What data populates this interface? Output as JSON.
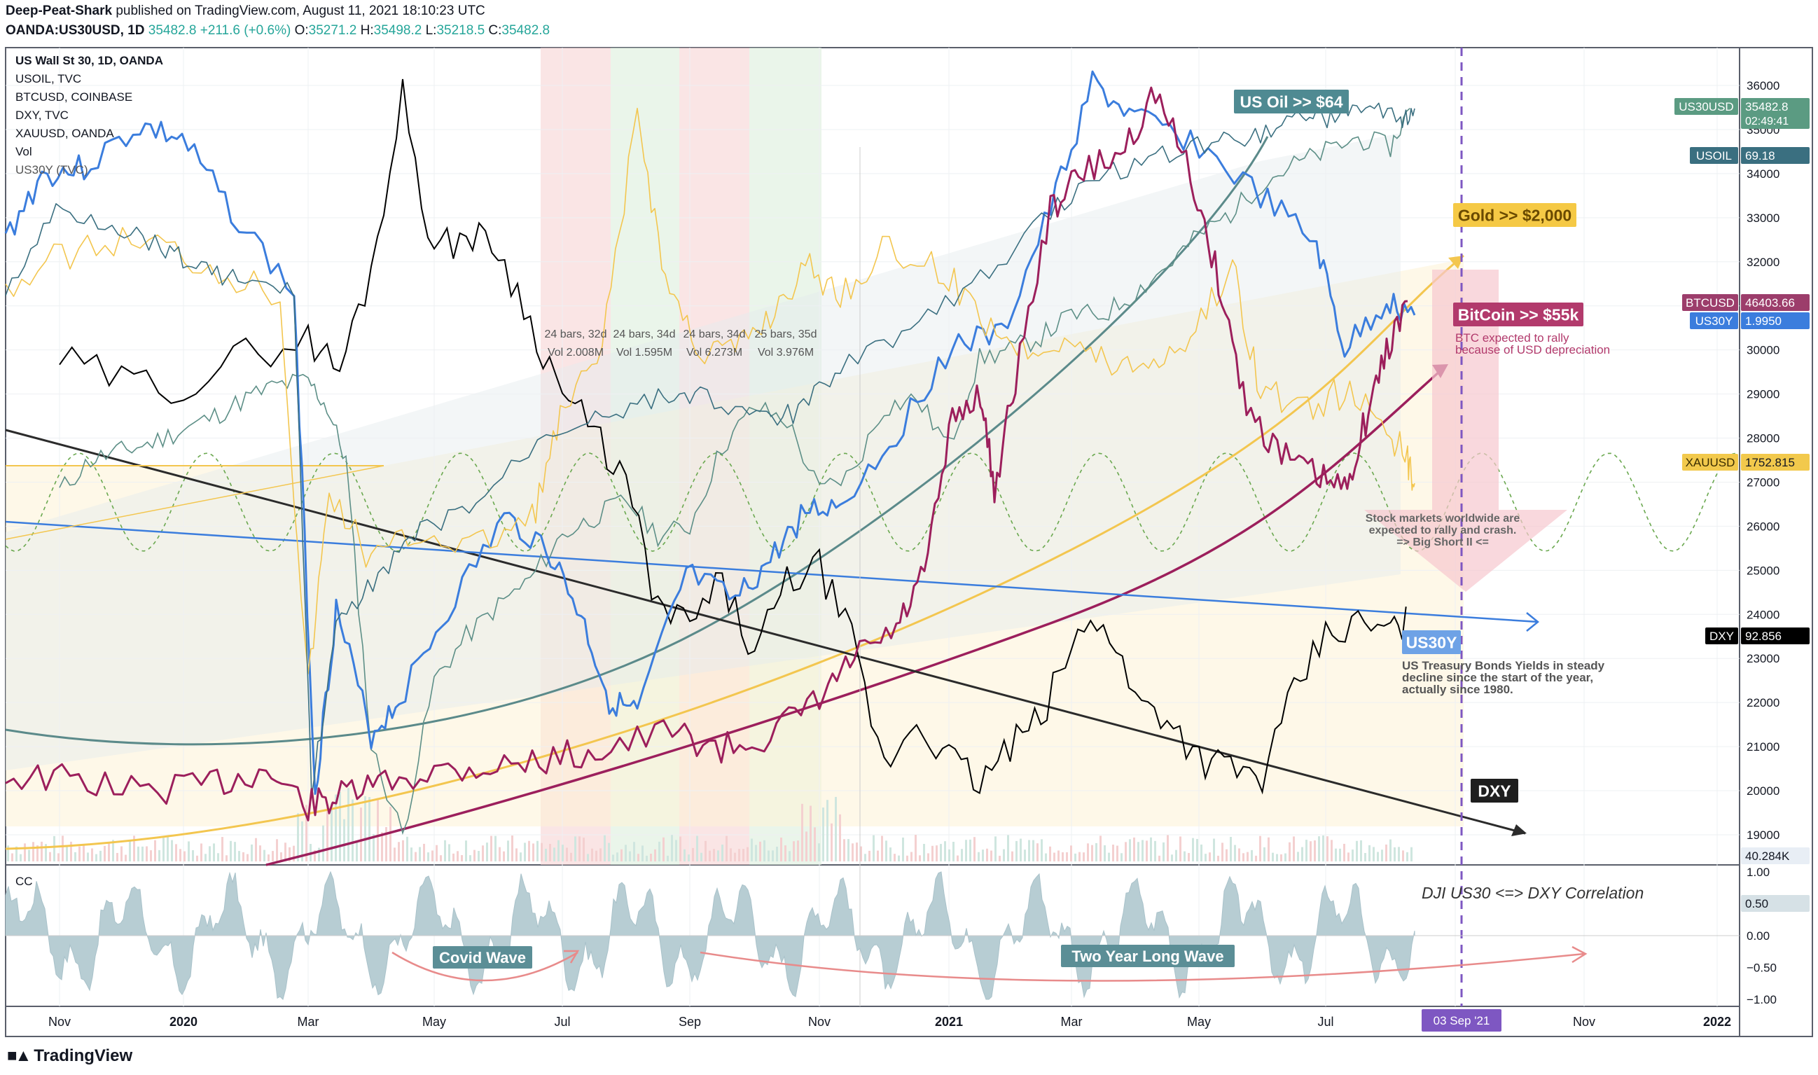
{
  "header": {
    "author": "Deep-Peat-Shark",
    "published": "published on TradingView.com, August 11, 2021 18:10:23 UTC",
    "symbol": "OANDA:US30USD, 1D",
    "last": "35482.8",
    "change": "+211.6 (+0.6%)",
    "o_label": "O:",
    "o": "35271.2",
    "h_label": "H:",
    "h": "35498.2",
    "l_label": "L:",
    "l": "35218.5",
    "c_label": "C:",
    "c": "35482.8"
  },
  "legend": {
    "main": "US Wall St 30, 1D, OANDA",
    "items": [
      "USOIL, TVC",
      "BTCUSD, COINBASE",
      "DXY, TVC",
      "XAUUSD, OANDA",
      "Vol",
      "US30Y (TVC)"
    ]
  },
  "cc_label": "CC",
  "brand": "TradingView",
  "colors": {
    "us30": "#5b8a8a",
    "usoil": "#3a6f80",
    "btc": "#9c1f5c",
    "dxy": "#000000",
    "xau": "#f2c94c",
    "us30y": "#3b7ddd",
    "cc_fill": "#b7cdd3",
    "red_band": "#f6d0d0",
    "green_band": "#dcefdc",
    "purple": "#7e57c2",
    "arrow_pink": "#f7c8cf"
  },
  "annotations": {
    "us_oil": "US Oil >> $64",
    "gold": "Gold >> $2,000",
    "bitcoin": "BitCoin >> $55k",
    "btc_note_1": "BTC expected to rally",
    "btc_note_2": "because of USD depreciation",
    "stock_note_1": "Stock markets worldwide are",
    "stock_note_2": "expected to rally and crash.",
    "stock_note_3": "=> Big Short II <=",
    "us30y_tag": "US30Y",
    "bond_note_1": "US Treasury Bonds Yields in steady",
    "bond_note_2": "decline since the start of the year,",
    "bond_note_3": "actually since 1980.",
    "dxy_tag": "DXY",
    "correlation": "DJI US30 <=> DXY Correlation",
    "covid_wave": "Covid Wave",
    "two_year_wave": "Two Year Long Wave",
    "bars": [
      {
        "bars": "24 bars, 32d",
        "vol": "Vol 2.008M"
      },
      {
        "bars": "24 bars, 34d",
        "vol": "Vol 1.595M"
      },
      {
        "bars": "24 bars, 34d",
        "vol": "Vol 6.273M"
      },
      {
        "bars": "25 bars, 35d",
        "vol": "Vol 3.976M"
      }
    ]
  },
  "price_tags": [
    {
      "name": "us30usd",
      "label": "US30USD",
      "value": "35482.8",
      "sub": "02:49:41",
      "color": "#5b9b82"
    },
    {
      "name": "usoil",
      "label": "USOIL",
      "value": "69.18",
      "sub": "",
      "color": "#3a6f80"
    },
    {
      "name": "btcusd",
      "label": "BTCUSD",
      "value": "46403.66",
      "sub": "",
      "color": "#9c3d6b"
    },
    {
      "name": "us30y",
      "label": "US30Y",
      "value": "1.9950",
      "sub": "",
      "color": "#3b7ddd"
    },
    {
      "name": "xauusd",
      "label": "XAUUSD",
      "value": "1752.815",
      "sub": "",
      "color": "#f2c94c"
    },
    {
      "name": "dxy",
      "label": "DXY",
      "value": "92.856",
      "sub": "",
      "color": "#000000"
    },
    {
      "name": "vol",
      "label": "",
      "value": "40.284K",
      "sub": "",
      "color": "#e8eef5"
    },
    {
      "name": "cc",
      "label": "",
      "value": "0.50",
      "sub": "",
      "color": "#d6e1e6"
    }
  ],
  "date_marker": "03 Sep '21",
  "chart_data": {
    "type": "line",
    "title": "US Wall St 30, 1D, OANDA",
    "x_ticks": [
      "Nov",
      "2020",
      "Mar",
      "May",
      "Jul",
      "Sep",
      "Nov",
      "2021",
      "Mar",
      "May",
      "Jul",
      "Sep",
      "Nov",
      "2022"
    ],
    "y_ticks": [
      36000,
      35000,
      34000,
      33000,
      32000,
      31000,
      30000,
      29000,
      28000,
      27000,
      26000,
      25000,
      24000,
      23000,
      22000,
      21000,
      20000,
      19000
    ],
    "ylim": [
      18500,
      36500
    ],
    "cc_ticks": [
      "1.00",
      "0.50",
      "0.00",
      "−0.50",
      "−1.00"
    ],
    "cc_ylim": [
      -1.1,
      1.1
    ],
    "series": [
      {
        "name": "US30USD",
        "x": [
          0,
          0.5,
          1,
          1.5,
          2,
          2.5,
          3,
          3.5,
          4,
          4.3,
          4.6,
          5,
          5.5,
          6,
          6.5,
          7,
          7.5,
          8,
          8.5,
          9,
          9.5,
          10,
          10.5,
          11,
          11.5,
          12,
          12.5,
          13,
          13.5,
          14,
          14.5,
          15,
          15.5,
          16,
          16.5,
          17,
          17.5,
          18,
          18.5,
          19,
          19.5,
          20,
          20.5,
          21,
          21.3
        ],
        "values": [
          26800,
          27500,
          27700,
          27900,
          28200,
          28500,
          28900,
          29200,
          29300,
          28700,
          27500,
          21000,
          19000,
          22500,
          23500,
          24200,
          24800,
          25800,
          26200,
          26600,
          25800,
          26000,
          27800,
          28700,
          28400,
          26800,
          27200,
          28700,
          28900,
          27800,
          29800,
          30000,
          30300,
          30800,
          30800,
          31300,
          31900,
          32600,
          33100,
          33800,
          34200,
          34500,
          34800,
          34600,
          35482.8
        ]
      },
      {
        "name": "DXY",
        "x": [
          0,
          1,
          2,
          3,
          4,
          4.5,
          5,
          5.5,
          6,
          6.5,
          7,
          7.5,
          8,
          8.5,
          9,
          9.5,
          10,
          10.5,
          11,
          11.5,
          12,
          12.5,
          13,
          13.5,
          14,
          14.5,
          15,
          15.5,
          16,
          16.5,
          17,
          17.5,
          18,
          18.5,
          19,
          19.5,
          20,
          20.5,
          21,
          21.3
        ],
        "values": [
          97.8,
          97.4,
          97.3,
          97.9,
          98.2,
          97.6,
          99.5,
          102.8,
          99.8,
          100.2,
          99.9,
          98.5,
          97.2,
          96.4,
          95.5,
          93.1,
          92.8,
          93.6,
          92.2,
          93.6,
          93.9,
          92.5,
          90.1,
          91.0,
          90.3,
          89.8,
          90.5,
          91.0,
          92.4,
          93.0,
          91.4,
          91.1,
          90.3,
          90.1,
          89.9,
          91.5,
          92.6,
          92.8,
          92.7,
          92.856
        ]
      }
    ]
  }
}
